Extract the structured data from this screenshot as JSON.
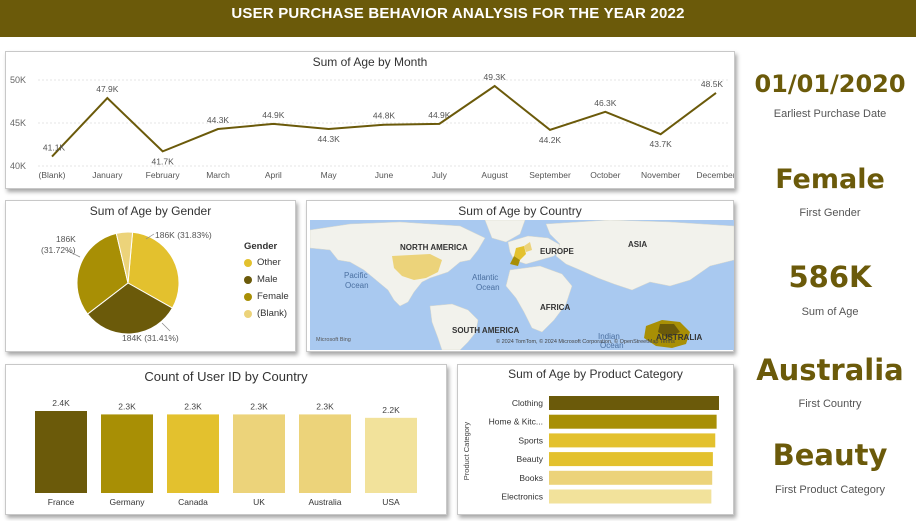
{
  "header": {
    "title": "USER PURCHASE BEHAVIOR ANALYSIS FOR THE YEAR 2022"
  },
  "colors": {
    "banner": "#6b5a0a",
    "line": "#6b5a0a",
    "dark_brown": "#6b5a0a",
    "olive": "#a88f05",
    "gold": "#e3c12e",
    "light_gold": "#ecd37a",
    "pale_gold": "#f2e29b",
    "map_water": "#a9c9f0",
    "map_land": "#f2f2ec"
  },
  "kpis": [
    {
      "value": "01/01/2020",
      "label": "Earliest Purchase Date"
    },
    {
      "value": "Female",
      "label": "First Gender"
    },
    {
      "value": "586K",
      "label": "Sum of Age"
    },
    {
      "value": "Australia",
      "label": "First Country"
    },
    {
      "value": "Beauty",
      "label": "First Product Category"
    }
  ],
  "map": {
    "title": "Sum of Age by Country",
    "labels": {
      "north_america": "NORTH AMERICA",
      "europe": "EUROPE",
      "asia": "ASIA",
      "pacific": "Pacific",
      "ocean1": "Ocean",
      "atlantic": "Atlantic",
      "ocean2": "Ocean",
      "africa": "AFRICA",
      "south_america": "SOUTH AMERICA",
      "indian": "Indian",
      "ocean3": "Ocean",
      "australia": "AUSTRALIA",
      "attribution": "© 2024 TomTom, © 2024 Microsoft Corporation, © OpenStreetMap Terms",
      "bing": "Microsoft Bing"
    }
  },
  "chart_data": [
    {
      "type": "line",
      "title": "Sum of Age by Month",
      "x": [
        "(Blank)",
        "January",
        "February",
        "March",
        "April",
        "May",
        "June",
        "July",
        "August",
        "September",
        "October",
        "November",
        "December"
      ],
      "values": [
        41.1,
        47.9,
        41.7,
        44.3,
        44.9,
        44.3,
        44.8,
        44.9,
        49.3,
        44.2,
        46.3,
        43.7,
        48.5
      ],
      "data_labels": [
        "41.1K",
        "47.9K",
        "41.7K",
        "44.3K",
        "44.9K",
        "44.3K",
        "44.8K",
        "44.9K",
        "49.3K",
        "44.2K",
        "46.3K",
        "43.7K",
        "48.5K"
      ],
      "yticks": [
        "40K",
        "45K",
        "50K"
      ],
      "ylim": [
        40,
        50
      ],
      "grid": true
    },
    {
      "type": "pie",
      "title": "Sum of Age by Gender",
      "legend_title": "Gender",
      "legend_position": "right",
      "categories": [
        "Other",
        "Male",
        "Female",
        "(Blank)"
      ],
      "values": [
        186,
        184,
        186,
        30
      ],
      "data_labels": [
        "186K (31.83%)",
        "184K (31.41%)",
        "186K\n(31.72%)",
        ""
      ],
      "colors": [
        "#e3c12e",
        "#6b5a0a",
        "#a88f05",
        "#ecd37a"
      ]
    },
    {
      "type": "bar",
      "title": "Count of User ID by Country",
      "categories": [
        "France",
        "Germany",
        "Canada",
        "UK",
        "Australia",
        "USA"
      ],
      "values": [
        2.4,
        2.3,
        2.3,
        2.3,
        2.3,
        2.2
      ],
      "data_labels": [
        "2.4K",
        "2.3K",
        "2.3K",
        "2.3K",
        "2.3K",
        "2.2K"
      ],
      "colors": [
        "#6b5a0a",
        "#a88f05",
        "#e3c12e",
        "#ecd37a",
        "#ecd37a",
        "#f2e29b"
      ]
    },
    {
      "type": "bar",
      "orientation": "horizontal",
      "title": "Sum of Age by Product Category",
      "ylabel": "Product Category",
      "categories": [
        "Clothing",
        "Home & Kitc...",
        "Sports",
        "Beauty",
        "Books",
        "Electronics"
      ],
      "values": [
        100,
        98.6,
        97.8,
        96.4,
        96.0,
        95.5
      ],
      "colors": [
        "#6b5a0a",
        "#a88f05",
        "#e3c12e",
        "#e3c12e",
        "#ecd37a",
        "#f2e29b"
      ]
    }
  ]
}
